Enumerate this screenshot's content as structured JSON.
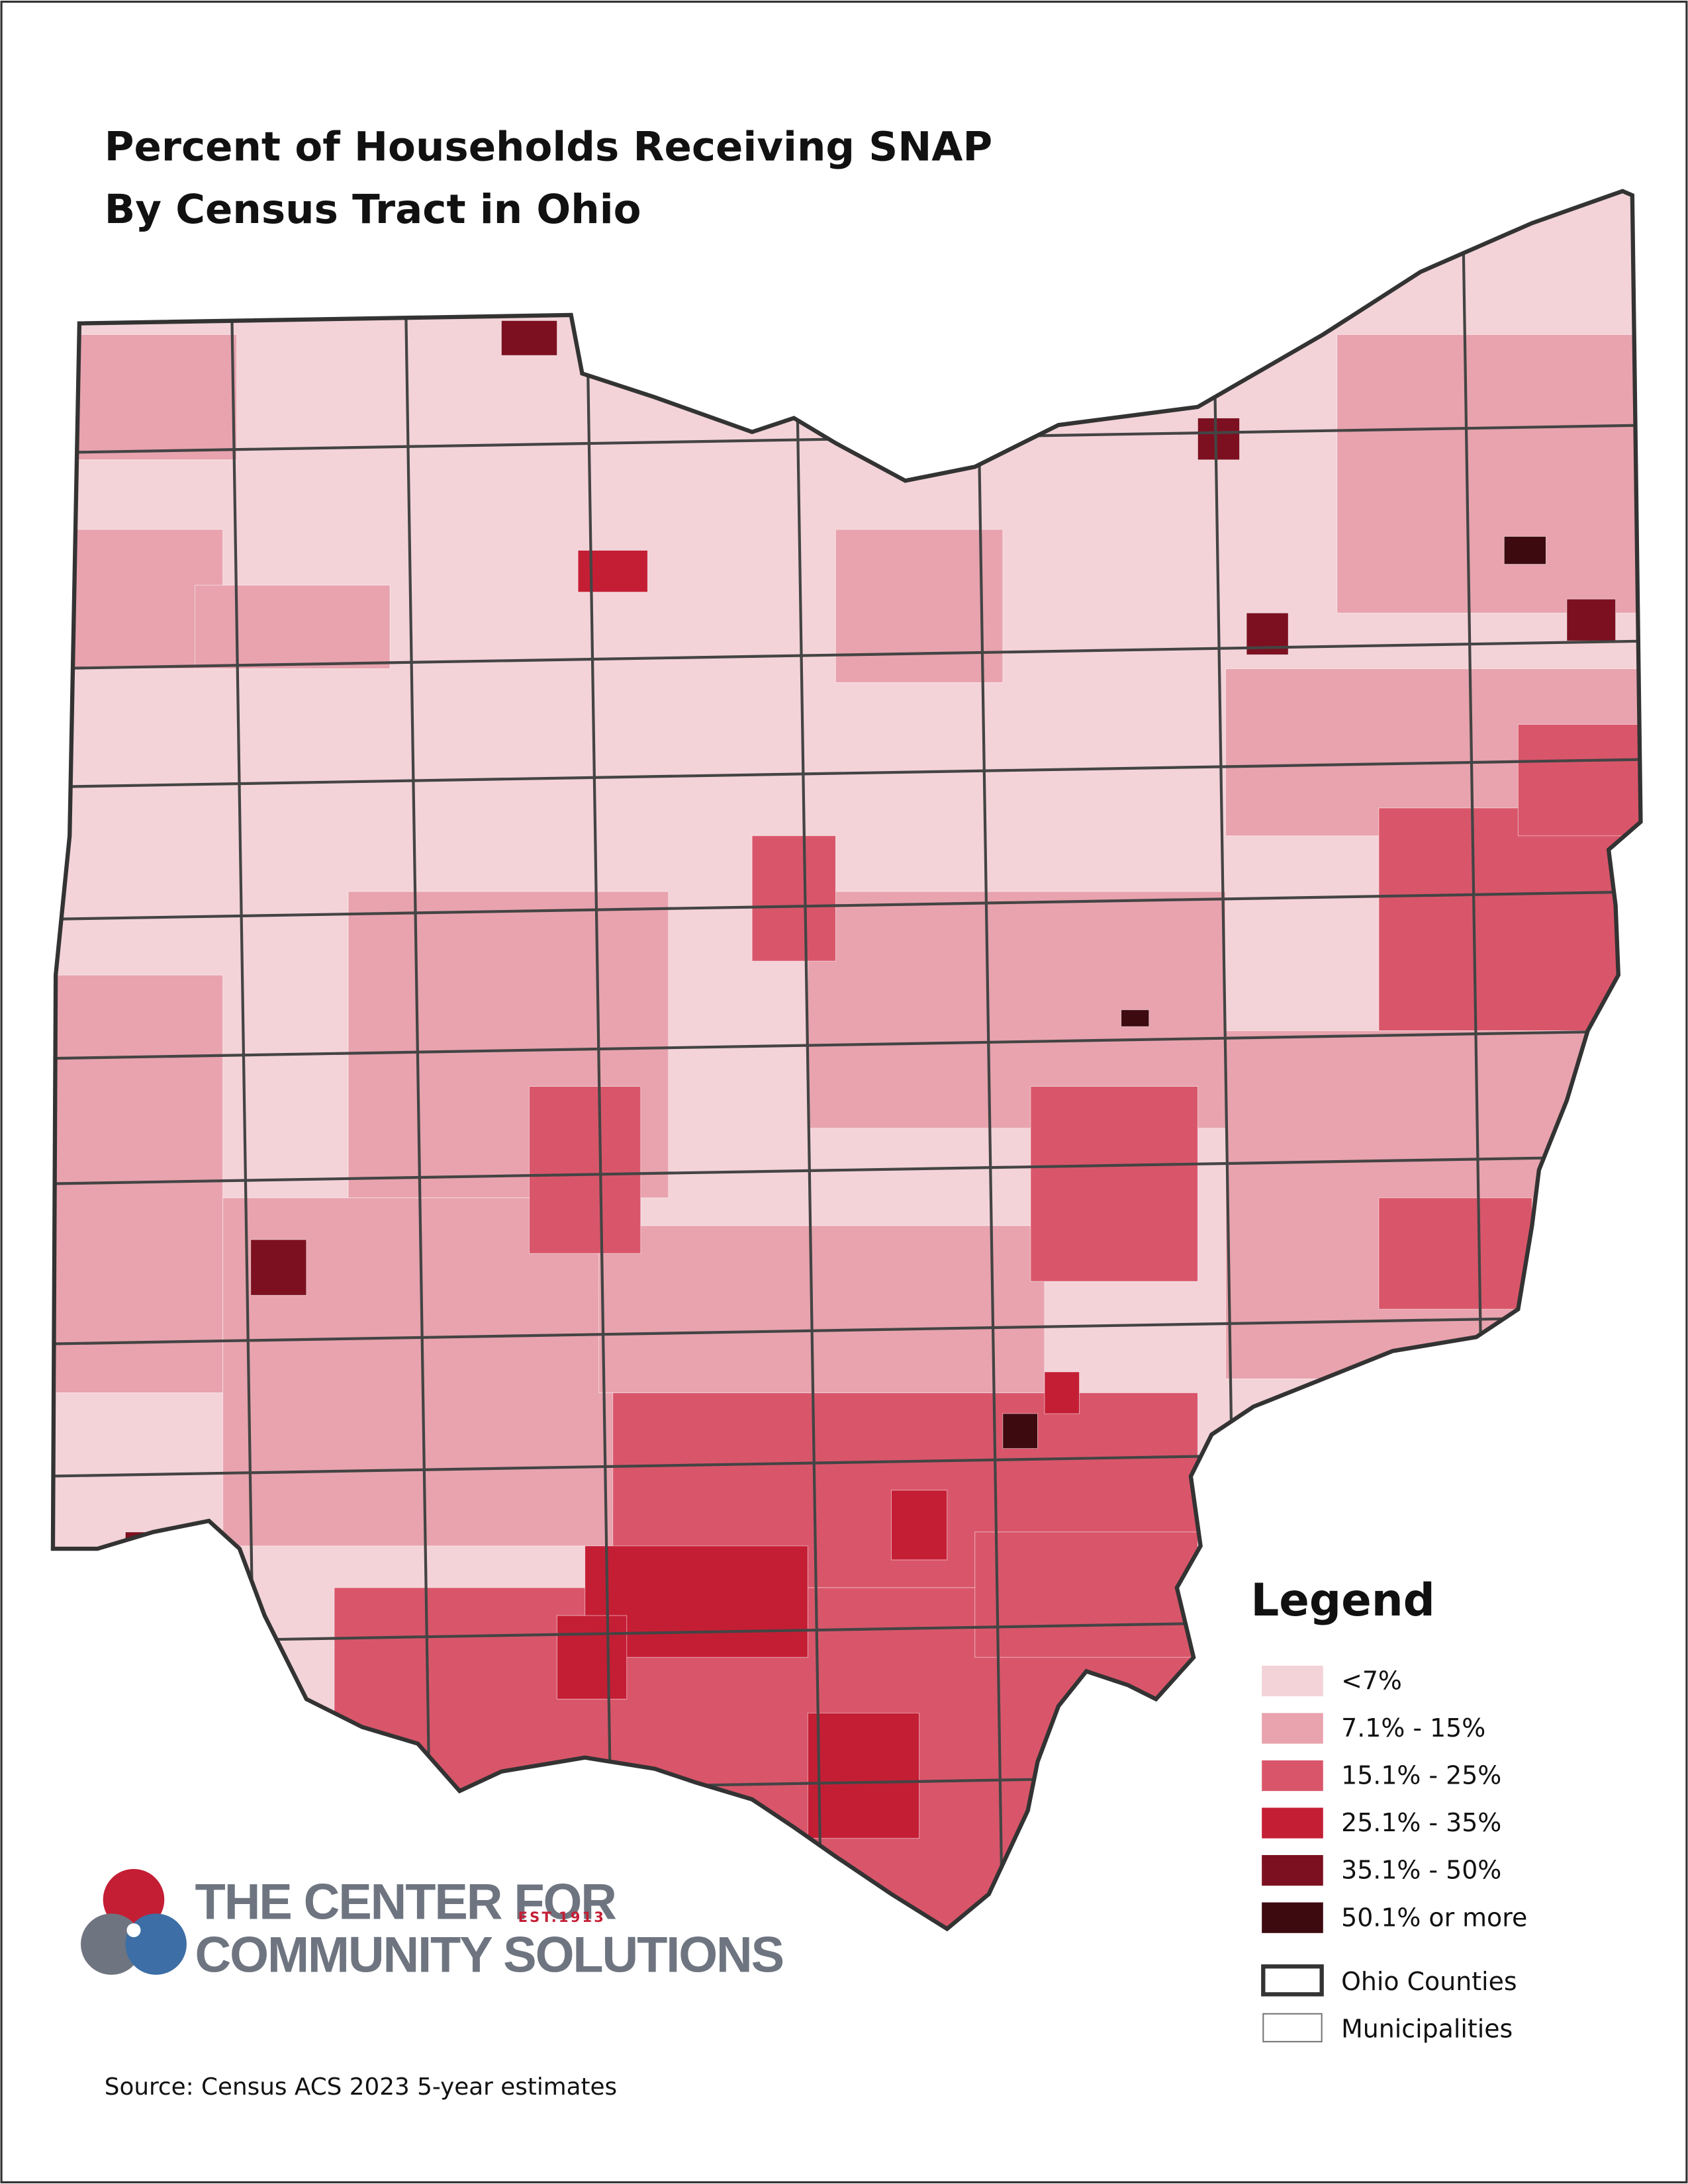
{
  "title": [
    "Percent of Households Receiving SNAP",
    "By Census Tract in Ohio"
  ],
  "legend": {
    "title": "Legend",
    "items": [
      {
        "label": "<7%",
        "color": "#f3d3d8"
      },
      {
        "label": "7.1% - 15%",
        "color": "#e8a3ae"
      },
      {
        "label": "15.1% - 25%",
        "color": "#d9566a"
      },
      {
        "label": "25.1% - 35%",
        "color": "#c41e35"
      },
      {
        "label": "35.1% - 50%",
        "color": "#7d1020"
      },
      {
        "label": "50.1% or more",
        "color": "#3d0a10"
      }
    ],
    "boundaries": [
      "Ohio Counties",
      "Municipalities"
    ]
  },
  "logo": {
    "line1": "THE CENTER FOR",
    "line2": "COMMUNITY SOLUTIONS",
    "est": "EST.1913"
  },
  "source": "Source: Census ACS 2023 5-year estimates"
}
